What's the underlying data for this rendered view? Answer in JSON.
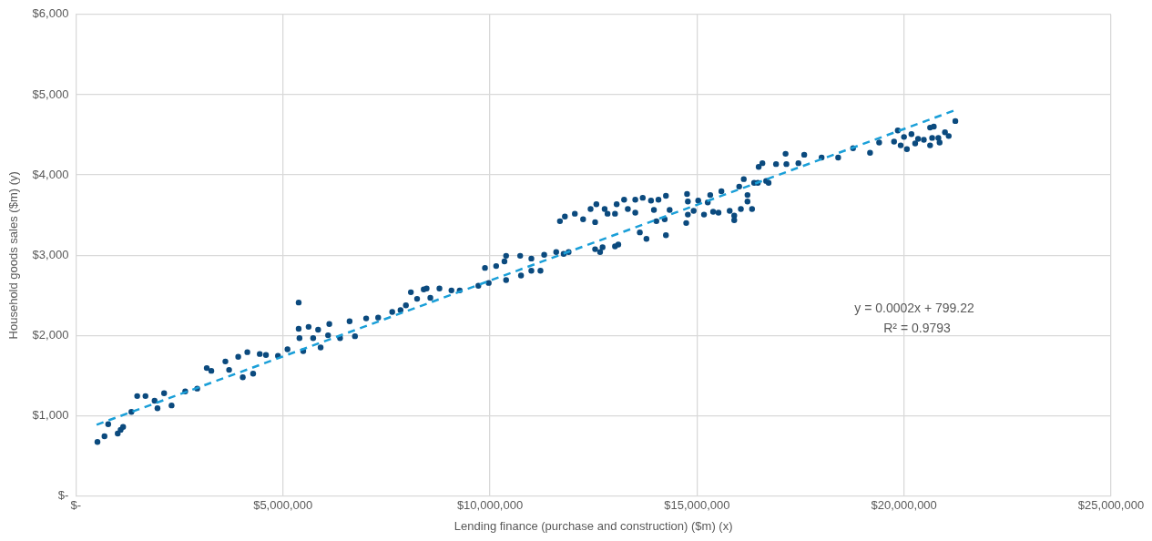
{
  "chart_data": {
    "type": "scatter",
    "xlabel": "Lending finance (purchase and construction) ($m) (x)",
    "ylabel": "Household goods sales ($m) (y)",
    "xlim": [
      0,
      25000000
    ],
    "ylim": [
      0,
      6000
    ],
    "xticks": [
      {
        "value": 0,
        "label": "$-"
      },
      {
        "value": 5000000,
        "label": "$5,000,000"
      },
      {
        "value": 10000000,
        "label": "$10,000,000"
      },
      {
        "value": 15000000,
        "label": "$15,000,000"
      },
      {
        "value": 20000000,
        "label": "$20,000,000"
      },
      {
        "value": 25000000,
        "label": "$25,000,000"
      }
    ],
    "yticks": [
      {
        "value": 0,
        "label": "$-"
      },
      {
        "value": 1000,
        "label": "$1,000"
      },
      {
        "value": 2000,
        "label": "$2,000"
      },
      {
        "value": 3000,
        "label": "$3,000"
      },
      {
        "value": 4000,
        "label": "$4,000"
      },
      {
        "value": 5000,
        "label": "$5,000"
      },
      {
        "value": 6000,
        "label": "$6,000"
      }
    ],
    "grid": true,
    "legend": false,
    "marker": "circle",
    "annotations": [
      "y = 0.0002x + 799.22",
      "R² = 0.9793"
    ],
    "series": [
      {
        "color": "#0b4a7e",
        "x": [
          520000,
          690000,
          780000,
          1010000,
          1080000,
          1140000,
          1340000,
          1480000,
          1680000,
          1900000,
          1970000,
          2130000,
          2310000,
          2640000,
          2930000,
          3160000,
          3270000,
          3610000,
          3700000,
          3920000,
          4030000,
          4140000,
          4280000,
          4440000,
          4590000,
          4880000,
          5110000,
          5380000,
          5380000,
          5400000,
          5490000,
          5620000,
          5730000,
          5850000,
          5910000,
          6120000,
          6090000,
          6380000,
          6610000,
          6740000,
          7010000,
          7300000,
          7640000,
          7840000,
          7970000,
          8090000,
          8240000,
          8400000,
          8470000,
          8560000,
          8780000,
          9070000,
          9270000,
          9720000,
          9970000,
          9880000,
          10150000,
          10350000,
          10390000,
          10390000,
          10730000,
          10750000,
          11000000,
          11000000,
          11220000,
          11310000,
          11600000,
          11780000,
          11900000,
          11690000,
          11810000,
          12050000,
          12250000,
          12540000,
          12430000,
          12570000,
          12770000,
          12840000,
          13020000,
          13060000,
          13240000,
          13330000,
          13510000,
          13510000,
          13690000,
          13890000,
          13960000,
          14070000,
          14250000,
          14340000,
          14220000,
          14250000,
          14020000,
          13620000,
          13780000,
          13100000,
          13020000,
          12660000,
          12720000,
          12540000,
          14740000,
          14780000,
          14780000,
          14760000,
          14920000,
          15030000,
          15170000,
          15260000,
          15320000,
          15390000,
          15520000,
          15590000,
          15790000,
          15900000,
          16020000,
          16060000,
          16220000,
          16220000,
          16130000,
          16380000,
          15900000,
          16330000,
          16470000,
          16490000,
          16580000,
          16670000,
          16730000,
          16910000,
          17140000,
          17160000,
          17450000,
          17590000,
          18010000,
          18410000,
          18770000,
          19180000,
          19400000,
          19760000,
          19920000,
          19850000,
          20000000,
          20070000,
          20180000,
          20270000,
          20340000,
          20480000,
          20630000,
          20720000,
          20680000,
          20830000,
          20860000,
          20990000,
          21080000,
          21240000,
          20630000
        ],
        "values": [
          676,
          746,
          897,
          781,
          827,
          862,
          1049,
          1247,
          1247,
          1188,
          1095,
          1282,
          1130,
          1305,
          1340,
          1596,
          1561,
          1678,
          1573,
          1736,
          1480,
          1794,
          1526,
          1771,
          1759,
          1748,
          1829,
          2412,
          2085,
          1969,
          1806,
          2109,
          1969,
          2074,
          1852,
          2144,
          2004,
          1969,
          2179,
          1992,
          2214,
          2225,
          2295,
          2318,
          2377,
          2540,
          2458,
          2575,
          2586,
          2470,
          2586,
          2563,
          2563,
          2621,
          2656,
          2843,
          2866,
          2924,
          2994,
          2691,
          2994,
          2749,
          2959,
          2808,
          2808,
          3006,
          3041,
          3017,
          3041,
          3425,
          3483,
          3518,
          3448,
          3413,
          3577,
          3635,
          3577,
          3518,
          3518,
          3635,
          3693,
          3577,
          3693,
          3530,
          3716,
          3681,
          3565,
          3693,
          3740,
          3565,
          3448,
          3250,
          3425,
          3285,
          3204,
          3134,
          3111,
          3041,
          3099,
          3076,
          3402,
          3507,
          3670,
          3763,
          3553,
          3681,
          3507,
          3658,
          3751,
          3542,
          3530,
          3798,
          3553,
          3437,
          3856,
          3577,
          3751,
          3670,
          3949,
          3903,
          3495,
          3577,
          3903,
          4101,
          4147,
          3926,
          3903,
          4136,
          4264,
          4136,
          4147,
          4252,
          4217,
          4217,
          4334,
          4276,
          4404,
          4415,
          4369,
          4555,
          4474,
          4322,
          4509,
          4392,
          4450,
          4439,
          4369,
          4602,
          4462,
          4462,
          4404,
          4532,
          4485,
          4672,
          4590
        ]
      },
      {
        "type": "line",
        "color": "#1a9fd8",
        "line_style": "dashed",
        "marker": "none",
        "x": [
          500000,
          21200000
        ],
        "values": [
          890,
          4800
        ]
      }
    ]
  }
}
